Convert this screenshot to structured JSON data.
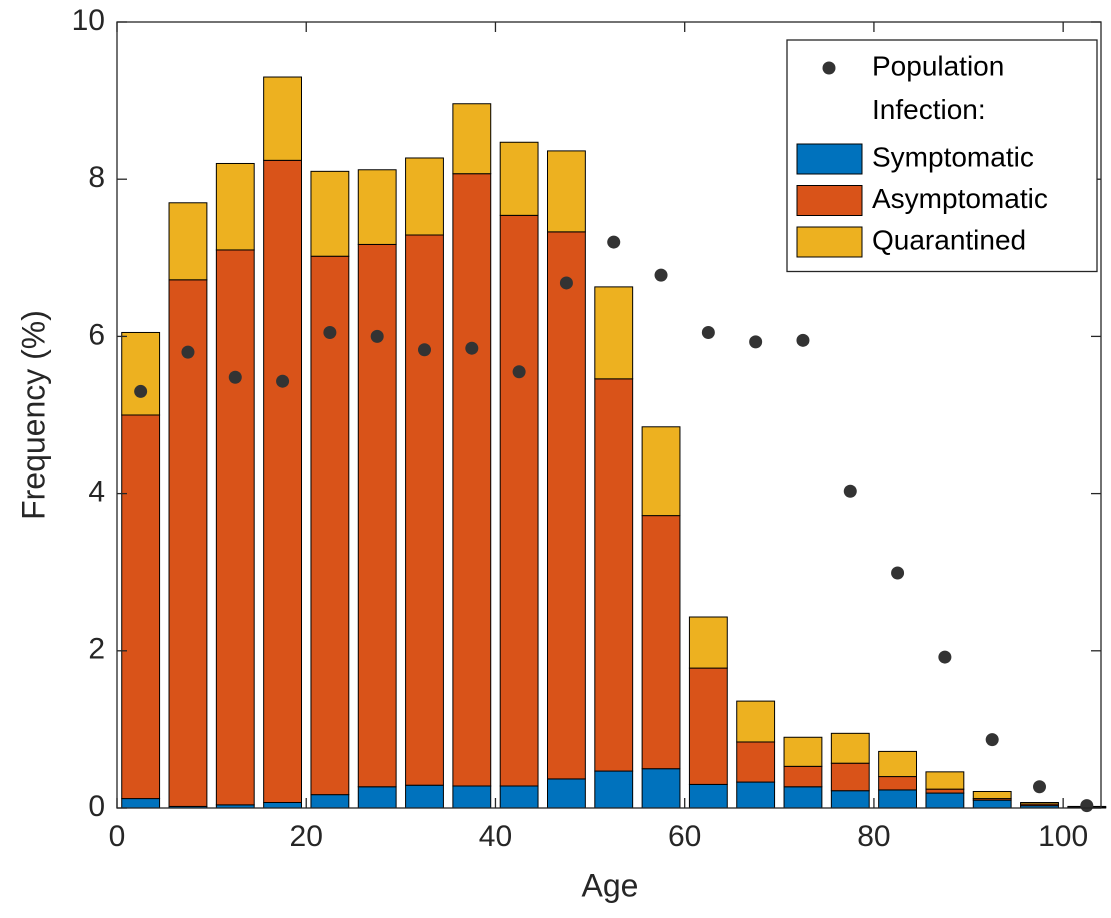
{
  "chart_data": {
    "type": "bar",
    "stacked": true,
    "x_label": "Age",
    "y_label": "Frequency (%)",
    "x": [
      2.5,
      7.5,
      12.5,
      17.5,
      22.5,
      27.5,
      32.5,
      37.5,
      42.5,
      47.5,
      52.5,
      57.5,
      62.5,
      67.5,
      72.5,
      77.5,
      82.5,
      87.5,
      92.5,
      97.5,
      102.5
    ],
    "legend_title": "Infection:",
    "legend": "upper right",
    "series": [
      {
        "name": "Population",
        "type": "scatter",
        "color": "#333333",
        "values": [
          5.3,
          5.8,
          5.48,
          5.43,
          6.05,
          6.0,
          5.83,
          5.85,
          5.55,
          6.68,
          7.2,
          6.78,
          6.05,
          5.93,
          5.95,
          4.03,
          2.99,
          1.92,
          0.87,
          0.27,
          0.03
        ]
      },
      {
        "name": "Symptomatic",
        "type": "bar",
        "color": "#0072BD",
        "values": [
          0.12,
          0.02,
          0.04,
          0.07,
          0.17,
          0.27,
          0.29,
          0.28,
          0.28,
          0.37,
          0.47,
          0.5,
          0.3,
          0.33,
          0.27,
          0.22,
          0.23,
          0.19,
          0.1,
          0.03,
          0.01
        ]
      },
      {
        "name": "Asymptomatic",
        "type": "bar",
        "color": "#D95319",
        "values": [
          4.88,
          6.7,
          7.06,
          8.17,
          6.85,
          6.9,
          7.0,
          7.79,
          7.26,
          6.96,
          4.99,
          3.22,
          1.48,
          0.51,
          0.26,
          0.35,
          0.17,
          0.05,
          0.02,
          0.02,
          0
        ]
      },
      {
        "name": "Quarantined",
        "type": "bar",
        "color": "#EDB120",
        "values": [
          1.05,
          0.98,
          1.1,
          1.06,
          1.08,
          0.95,
          0.98,
          0.89,
          0.93,
          1.03,
          1.17,
          1.13,
          0.65,
          0.52,
          0.37,
          0.38,
          0.32,
          0.22,
          0.09,
          0.02,
          0.01
        ]
      }
    ],
    "xlim": [
      0,
      104
    ],
    "ylim": [
      0,
      10
    ],
    "xticks": [
      0,
      20,
      40,
      60,
      80,
      100
    ],
    "yticks": [
      0,
      2,
      4,
      6,
      8,
      10
    ],
    "grid": false
  }
}
